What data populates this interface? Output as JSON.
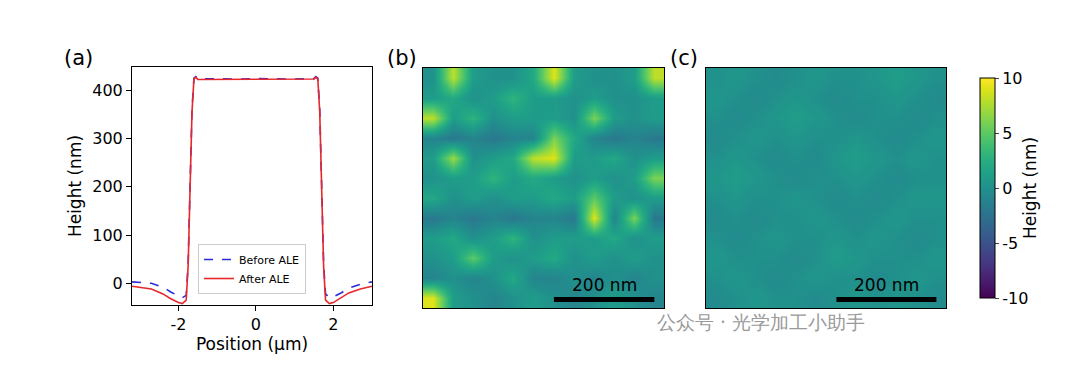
{
  "chart_data": [
    {
      "type": "line",
      "panel": "(a)",
      "x_label": "Position (μm)",
      "y_label": "Height (nm)",
      "xlim": [
        -3.2,
        3.0
      ],
      "xticks": [
        -2,
        0,
        2
      ],
      "ylim": [
        -45,
        448
      ],
      "yticks": [
        0,
        100,
        200,
        300,
        400
      ],
      "legend": "lower center",
      "x": [
        -3.2,
        -2.7,
        -2.4,
        -2.2,
        -2.0,
        -1.9,
        -1.8,
        -1.75,
        -1.7,
        -1.65,
        -1.6,
        -1.55,
        -1.5,
        -1.0,
        -0.5,
        0,
        0.5,
        1.0,
        1.5,
        1.55,
        1.6,
        1.65,
        1.7,
        1.75,
        1.8,
        1.9,
        2.0,
        2.2,
        2.4,
        2.7,
        3.0
      ],
      "series": [
        {
          "name": "Before ALE",
          "color": "#2b2bd9",
          "line_style": "dash",
          "values": [
            3,
            0,
            -8,
            -18,
            -26,
            -30,
            -25,
            40,
            200,
            360,
            425,
            428,
            424,
            423,
            423,
            424,
            423,
            423,
            424,
            428,
            425,
            360,
            200,
            40,
            -22,
            -30,
            -28,
            -20,
            -10,
            -2,
            3
          ]
        },
        {
          "name": "After ALE",
          "color": "#e8272a",
          "line_style": "solid",
          "values": [
            -6,
            -12,
            -22,
            -32,
            -40,
            -42,
            -35,
            35,
            195,
            355,
            423,
            427,
            422,
            422,
            422,
            423,
            422,
            422,
            423,
            427,
            423,
            355,
            195,
            35,
            -35,
            -42,
            -40,
            -30,
            -20,
            -12,
            -6
          ]
        }
      ]
    },
    {
      "type": "heatmap",
      "panel": "(b)",
      "tick_labels": false,
      "color": "Viridis",
      "xlim": [
        0,
        480
      ],
      "ylim": [
        0,
        480
      ],
      "x": [
        20,
        60,
        100,
        140,
        180,
        220,
        260,
        300,
        340,
        380,
        420,
        460
      ],
      "y": [
        460,
        420,
        380,
        340,
        300,
        260,
        220,
        180,
        140,
        100,
        60,
        20
      ],
      "z": [
        [
          0,
          8,
          1,
          0,
          0,
          2,
          9,
          1,
          0,
          0,
          1,
          8
        ],
        [
          1,
          2,
          0,
          1,
          3,
          1,
          1,
          0,
          1,
          0,
          0,
          1
        ],
        [
          8,
          1,
          3,
          0,
          1,
          1,
          1,
          0,
          6,
          1,
          0,
          1
        ],
        [
          -1,
          -2,
          -1,
          -2,
          -1,
          -1,
          6,
          2,
          -1,
          -2,
          -1,
          -2
        ],
        [
          1,
          7,
          0,
          1,
          2,
          8,
          9,
          1,
          1,
          2,
          0,
          1
        ],
        [
          0,
          1,
          1,
          3,
          1,
          2,
          1,
          0,
          1,
          0,
          1,
          6
        ],
        [
          2,
          0,
          1,
          0,
          1,
          1,
          2,
          1,
          5,
          1,
          0,
          1
        ],
        [
          -2,
          -1,
          -2,
          -1,
          -2,
          -1,
          -1,
          -2,
          9,
          -1,
          6,
          -2
        ],
        [
          1,
          2,
          0,
          1,
          3,
          0,
          1,
          1,
          1,
          2,
          0,
          1
        ],
        [
          0,
          1,
          5,
          1,
          0,
          1,
          2,
          0,
          1,
          0,
          1,
          0
        ],
        [
          -1,
          0,
          -1,
          0,
          2,
          -1,
          -1,
          0,
          -1,
          0,
          -1,
          0
        ],
        [
          9,
          1,
          0,
          -1,
          0,
          1,
          0,
          -1,
          0,
          1,
          0,
          -1
        ]
      ],
      "scale_bar": {
        "length": 200,
        "label": "200 nm"
      },
      "colorbar": {
        "lim": [
          -10,
          10
        ]
      }
    },
    {
      "type": "heatmap",
      "panel": "(c)",
      "tick_labels": false,
      "color": "Viridis",
      "xlim": [
        0,
        480
      ],
      "ylim": [
        0,
        480
      ],
      "x": [
        20,
        60,
        100,
        140,
        180,
        220,
        260,
        300,
        340,
        380,
        420,
        460
      ],
      "y": [
        460,
        420,
        380,
        340,
        300,
        260,
        220,
        180,
        140,
        100,
        60,
        20
      ],
      "z": [
        [
          0,
          0.5,
          0,
          -0.5,
          0,
          0.5,
          0,
          0,
          0.5,
          1,
          0.5,
          0
        ],
        [
          0.5,
          0,
          -0.5,
          0,
          0.5,
          0,
          -0.5,
          0,
          0,
          0.5,
          0,
          -0.5
        ],
        [
          0,
          -0.5,
          0,
          0.5,
          1,
          0.5,
          0,
          -0.5,
          0,
          0,
          -0.5,
          0
        ],
        [
          -0.5,
          0,
          0.5,
          0,
          0.5,
          0,
          0,
          0.5,
          0,
          -0.5,
          0,
          0.5
        ],
        [
          0,
          0.5,
          0,
          -0.5,
          0,
          -0.5,
          0.5,
          1,
          0.5,
          0,
          0.5,
          0
        ],
        [
          0.5,
          1,
          0.5,
          0,
          -0.5,
          0,
          0,
          0.5,
          0,
          -0.5,
          0,
          0
        ],
        [
          0,
          0.5,
          0,
          0,
          0.5,
          0,
          -0.5,
          0,
          -0.5,
          0,
          0.5,
          0.5
        ],
        [
          -0.5,
          0,
          -0.5,
          0,
          0,
          0.5,
          0,
          -0.5,
          0,
          0.5,
          0,
          0
        ],
        [
          0,
          -0.5,
          0,
          0.5,
          0,
          0,
          0.5,
          0,
          0.5,
          0,
          -0.5,
          0
        ],
        [
          0.5,
          0,
          0,
          0,
          -0.5,
          0,
          1,
          0.5,
          0,
          0,
          0,
          0.5
        ],
        [
          0,
          0.5,
          0,
          -0.5,
          0,
          0.5,
          0,
          0,
          -0.5,
          0,
          0.5,
          0
        ],
        [
          -0.5,
          0,
          0.5,
          0,
          0,
          -0.5,
          0,
          0.5,
          0,
          0.5,
          0,
          -0.5
        ]
      ],
      "scale_bar": {
        "length": 200,
        "label": "200 nm"
      },
      "colorbar": {
        "title": "Height (nm)",
        "lim": [
          -10,
          10
        ],
        "ticks": [
          -10,
          -5,
          0,
          5,
          10
        ]
      },
      "annotations": [
        {
          "text": "公众号 · 光学加工小助手"
        }
      ]
    }
  ]
}
